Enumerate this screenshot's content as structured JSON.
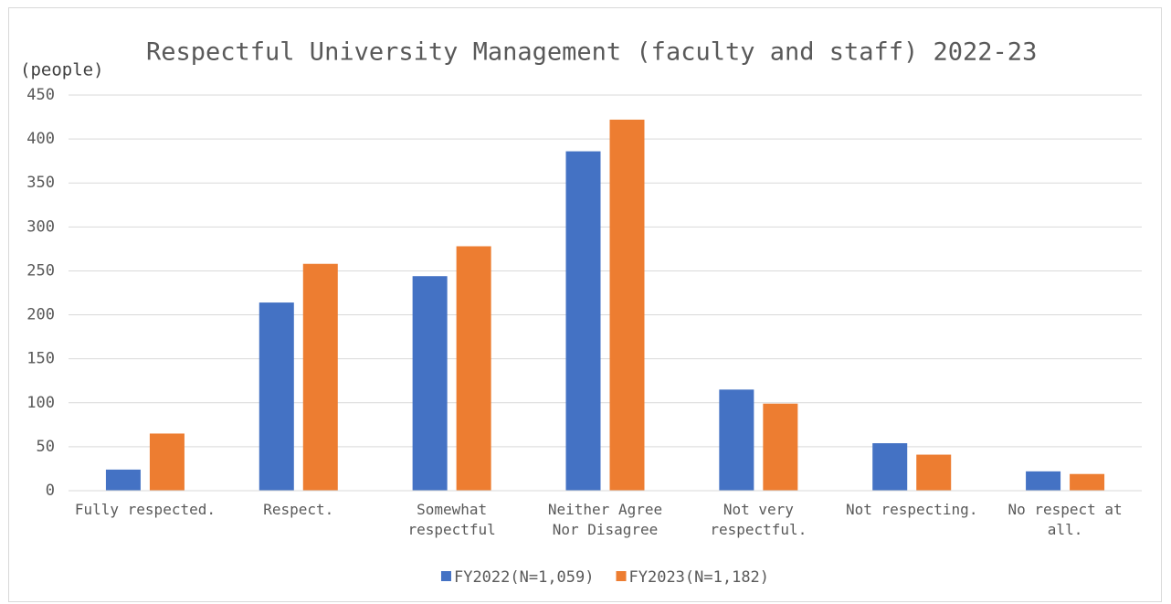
{
  "chart_data": {
    "type": "bar",
    "title": "Respectful University Management (faculty and staff) 2022-23",
    "y_label": "(people)",
    "categories": [
      "Fully respected.",
      "Respect.",
      "Somewhat respectful",
      "Neither Agree Nor Disagree",
      "Not very respectful.",
      "Not respecting.",
      "No respect at all."
    ],
    "series": [
      {
        "name": "FY2022(N=1,059)",
        "color": "#4472c4",
        "values": [
          24,
          214,
          244,
          386,
          115,
          54,
          22
        ]
      },
      {
        "name": "FY2023(N=1,182)",
        "color": "#ed7d31",
        "values": [
          65,
          258,
          278,
          422,
          99,
          41,
          19
        ]
      }
    ],
    "ylim": [
      0,
      450
    ],
    "yticks": [
      0,
      50,
      100,
      150,
      200,
      250,
      300,
      350,
      400,
      450
    ],
    "grid": true,
    "legend": "bottom"
  }
}
